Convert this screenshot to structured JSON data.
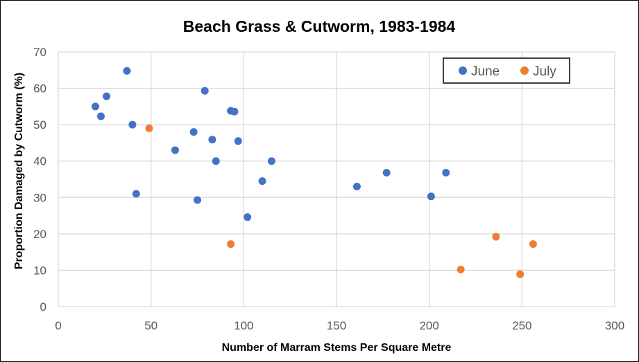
{
  "chart_data": {
    "type": "scatter",
    "title": "Beach Grass & Cutworm, 1983-1984",
    "xlabel": "Number of Marram Stems Per Square Metre",
    "ylabel": "Proportion Damaged by Cutworm (%)",
    "xlim": [
      0,
      300
    ],
    "ylim": [
      0,
      70
    ],
    "x_ticks": [
      0,
      50,
      100,
      150,
      200,
      250,
      300
    ],
    "y_ticks": [
      0,
      10,
      20,
      30,
      40,
      50,
      60,
      70
    ],
    "grid": true,
    "legend_position": "top-right",
    "series": [
      {
        "name": "June",
        "color": "#4472c4",
        "points": [
          {
            "x": 20,
            "y": 55
          },
          {
            "x": 23,
            "y": 52.3
          },
          {
            "x": 26,
            "y": 57.8
          },
          {
            "x": 37,
            "y": 64.8
          },
          {
            "x": 40,
            "y": 50
          },
          {
            "x": 42,
            "y": 31
          },
          {
            "x": 63,
            "y": 43
          },
          {
            "x": 73,
            "y": 48
          },
          {
            "x": 75,
            "y": 29.3
          },
          {
            "x": 79,
            "y": 59.3
          },
          {
            "x": 83,
            "y": 45.9
          },
          {
            "x": 85,
            "y": 40
          },
          {
            "x": 93,
            "y": 53.8
          },
          {
            "x": 95,
            "y": 53.6
          },
          {
            "x": 97,
            "y": 45.5
          },
          {
            "x": 102,
            "y": 24.6
          },
          {
            "x": 110,
            "y": 34.5
          },
          {
            "x": 115,
            "y": 40
          },
          {
            "x": 161,
            "y": 33
          },
          {
            "x": 177,
            "y": 36.8
          },
          {
            "x": 201,
            "y": 30.3
          },
          {
            "x": 209,
            "y": 36.8
          }
        ]
      },
      {
        "name": "July",
        "color": "#ed7d31",
        "points": [
          {
            "x": 49,
            "y": 49
          },
          {
            "x": 93,
            "y": 17.2
          },
          {
            "x": 217,
            "y": 10.2
          },
          {
            "x": 236,
            "y": 19.2
          },
          {
            "x": 249,
            "y": 8.9
          },
          {
            "x": 256,
            "y": 17.2
          }
        ]
      }
    ]
  }
}
